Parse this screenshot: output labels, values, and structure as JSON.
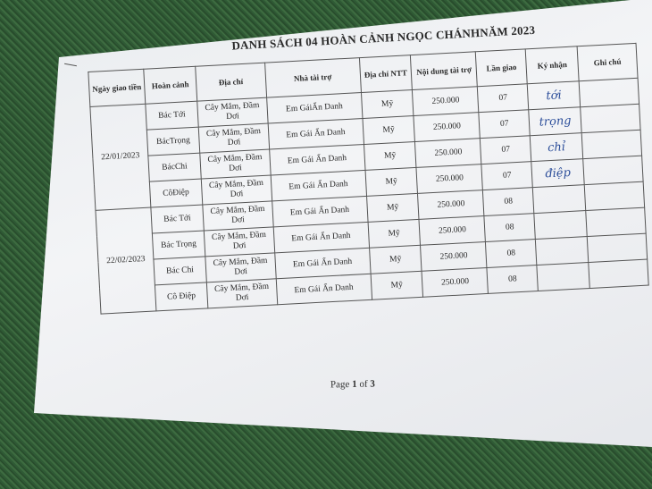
{
  "document": {
    "title": "DANH SÁCH 04 HOÀN CẢNH NGỌC CHÁNHNĂM 2023",
    "headers": [
      "Ngày giao tiền",
      "Hoàn cảnh",
      "Địa chỉ",
      "Nhà tài trợ",
      "Địa chỉ NTT",
      "Nội dung tài trợ",
      "Lần giao",
      "Ký nhận",
      "Ghi chú"
    ],
    "groups": [
      {
        "date": "22/01/2023",
        "rows": [
          {
            "name": "Bác Tới",
            "address": "Cây Mắm, Đầm Dơi",
            "sponsor": "Em GáiẨn Danh",
            "sponsor_address": "Mỹ",
            "amount": "250.000",
            "round": "07",
            "signature": "tới",
            "note": ""
          },
          {
            "name": "BácTrọng",
            "address": "Cây Mắm, Đầm Dơi",
            "sponsor": "Em Gái Ẩn Danh",
            "sponsor_address": "Mỹ",
            "amount": "250.000",
            "round": "07",
            "signature": "trọng",
            "note": ""
          },
          {
            "name": "BácChi",
            "address": "Cây Mắm, Đầm Dơi",
            "sponsor": "Em Gái Ẩn Danh",
            "sponsor_address": "Mỹ",
            "amount": "250.000",
            "round": "07",
            "signature": "chỉ",
            "note": ""
          },
          {
            "name": "CôĐiệp",
            "address": "Cây Mắm, Đầm Dơi",
            "sponsor": "Em Gái Ẩn Danh",
            "sponsor_address": "Mỹ",
            "amount": "250.000",
            "round": "07",
            "signature": "điệp",
            "note": ""
          }
        ]
      },
      {
        "date": "22/02/2023",
        "rows": [
          {
            "name": "Bác Tới",
            "address": "Cây Mắm, Đầm Dơi",
            "sponsor": "Em Gái Ẩn Danh",
            "sponsor_address": "Mỹ",
            "amount": "250.000",
            "round": "08",
            "signature": "",
            "note": ""
          },
          {
            "name": "Bác Trọng",
            "address": "Cây Mắm, Đầm Dơi",
            "sponsor": "Em Gái Ẩn Danh",
            "sponsor_address": "Mỹ",
            "amount": "250.000",
            "round": "08",
            "signature": "",
            "note": ""
          },
          {
            "name": "Bác Chi",
            "address": "Cây Mắm, Đầm Dơi",
            "sponsor": "Em Gái Ẩn Danh",
            "sponsor_address": "Mỹ",
            "amount": "250.000",
            "round": "08",
            "signature": "",
            "note": ""
          },
          {
            "name": "Cô Điệp",
            "address": "Cây Mắm, Đầm Dơi",
            "sponsor": "Em Gái Ẩn Danh",
            "sponsor_address": "Mỹ",
            "amount": "250.000",
            "round": "08",
            "signature": "",
            "note": ""
          }
        ]
      }
    ],
    "footer": {
      "prefix": "Page ",
      "current": "1",
      "middle": " of ",
      "total": "3"
    }
  }
}
